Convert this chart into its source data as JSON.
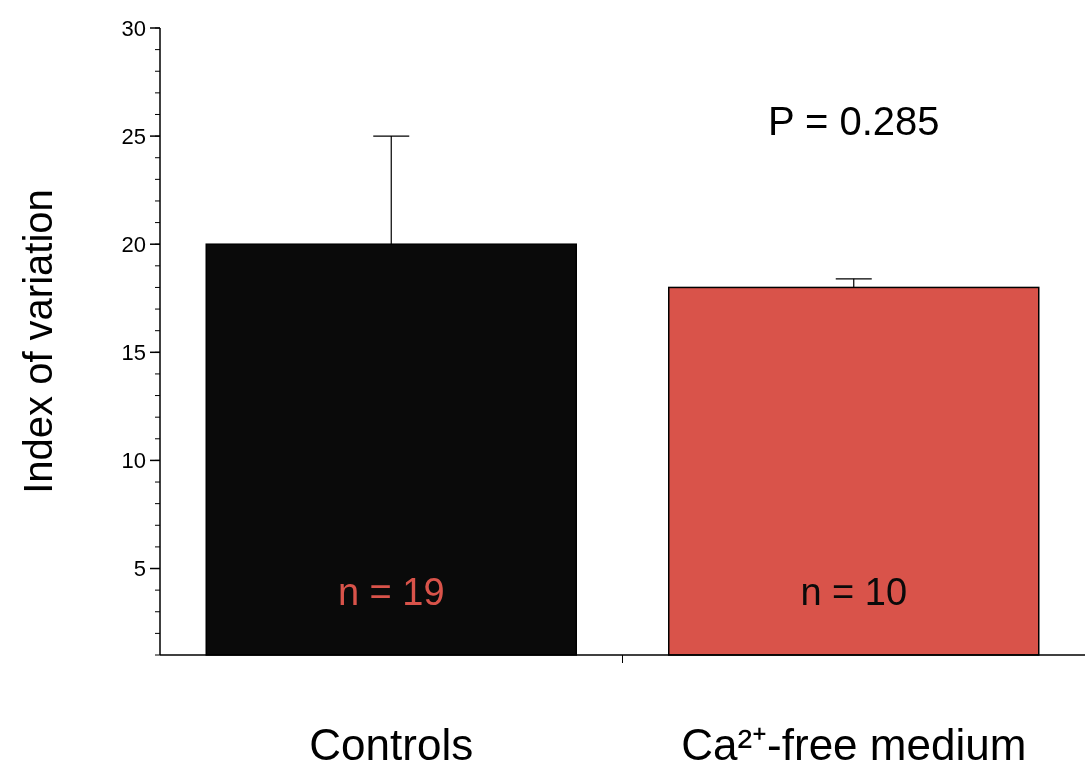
{
  "chart_data": {
    "type": "bar",
    "ylabel": "Index of variation",
    "categories": [
      "Controls",
      "Ca²⁺-free medium"
    ],
    "values": [
      20,
      18
    ],
    "colors": [
      "#0a0a0a",
      "#d9534a"
    ],
    "errors": [
      [
        20,
        25
      ],
      [
        18,
        18.4
      ]
    ],
    "ylim": [
      1,
      30
    ],
    "yticks": [
      5,
      10,
      15,
      20,
      25,
      30
    ],
    "grid": false,
    "annotations": [
      "P = 0.285",
      "n = 19",
      "n = 10"
    ]
  }
}
